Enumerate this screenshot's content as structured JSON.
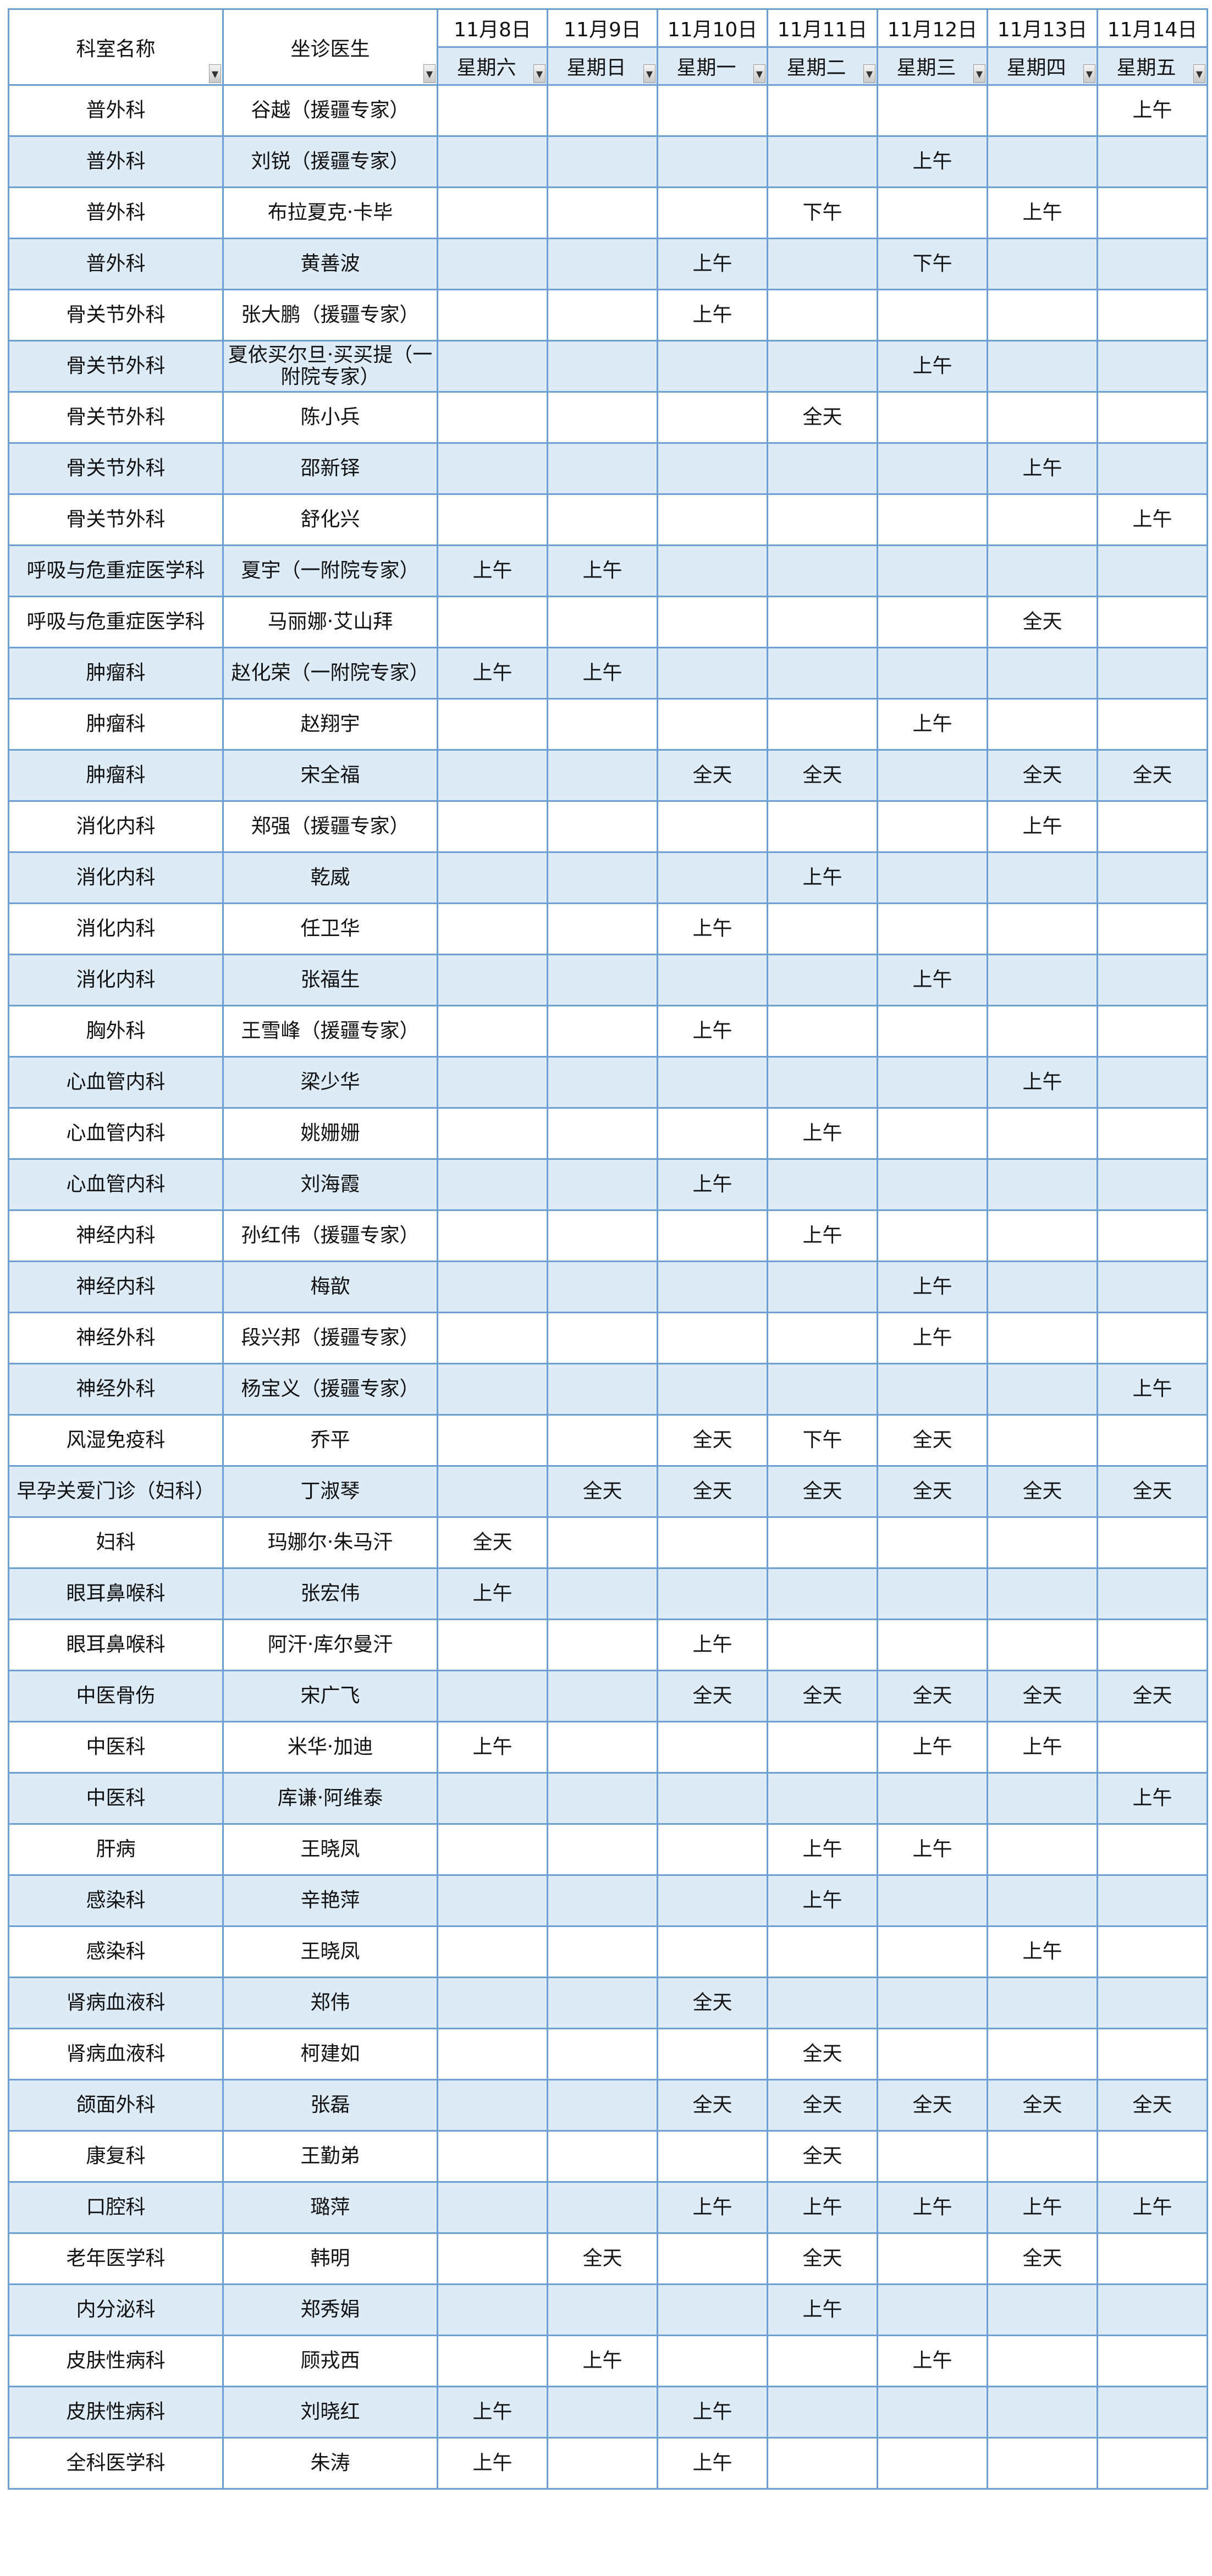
{
  "header": {
    "dept_label": "科室名称",
    "doctor_label": "坐诊医生",
    "dates": [
      "11月8日",
      "11月9日",
      "11月10日",
      "11月11日",
      "11月12日",
      "11月13日",
      "11月14日"
    ],
    "weekdays": [
      "星期六",
      "星期日",
      "星期一",
      "星期二",
      "星期三",
      "星期四",
      "星期五"
    ],
    "filter_icon": "dropdown-arrow-icon"
  },
  "colors": {
    "border": "#6d9fd6",
    "stripe": "#ddebf7"
  },
  "rows": [
    {
      "dept": "普外科",
      "doctor": "谷越（援疆专家）",
      "days": [
        "",
        "",
        "",
        "",
        "",
        "",
        "上午"
      ]
    },
    {
      "dept": "普外科",
      "doctor": "刘锐（援疆专家）",
      "days": [
        "",
        "",
        "",
        "",
        "上午",
        "",
        ""
      ]
    },
    {
      "dept": "普外科",
      "doctor": "布拉夏克·卡毕",
      "days": [
        "",
        "",
        "",
        "下午",
        "",
        "上午",
        ""
      ]
    },
    {
      "dept": "普外科",
      "doctor": "黄善波",
      "days": [
        "",
        "",
        "上午",
        "",
        "下午",
        "",
        ""
      ]
    },
    {
      "dept": "骨关节外科",
      "doctor": "张大鹏（援疆专家）",
      "days": [
        "",
        "",
        "上午",
        "",
        "",
        "",
        ""
      ]
    },
    {
      "dept": "骨关节外科",
      "doctor": "夏依买尔旦·买买提（一附院专家）",
      "days": [
        "",
        "",
        "",
        "",
        "上午",
        "",
        ""
      ]
    },
    {
      "dept": "骨关节外科",
      "doctor": "陈小兵",
      "days": [
        "",
        "",
        "",
        "全天",
        "",
        "",
        ""
      ]
    },
    {
      "dept": "骨关节外科",
      "doctor": "邵新铎",
      "days": [
        "",
        "",
        "",
        "",
        "",
        "上午",
        ""
      ]
    },
    {
      "dept": "骨关节外科",
      "doctor": "舒化兴",
      "days": [
        "",
        "",
        "",
        "",
        "",
        "",
        "上午"
      ]
    },
    {
      "dept": "呼吸与危重症医学科",
      "doctor": "夏宇（一附院专家）",
      "days": [
        "上午",
        "上午",
        "",
        "",
        "",
        "",
        ""
      ]
    },
    {
      "dept": "呼吸与危重症医学科",
      "doctor": "马丽娜·艾山拜",
      "days": [
        "",
        "",
        "",
        "",
        "",
        "全天",
        ""
      ]
    },
    {
      "dept": "肿瘤科",
      "doctor": "赵化荣（一附院专家）",
      "days": [
        "上午",
        "上午",
        "",
        "",
        "",
        "",
        ""
      ]
    },
    {
      "dept": "肿瘤科",
      "doctor": "赵翔宇",
      "days": [
        "",
        "",
        "",
        "",
        "上午",
        "",
        ""
      ]
    },
    {
      "dept": "肿瘤科",
      "doctor": "宋全福",
      "days": [
        "",
        "",
        "全天",
        "全天",
        "",
        "全天",
        "全天"
      ]
    },
    {
      "dept": "消化内科",
      "doctor": "郑强（援疆专家）",
      "days": [
        "",
        "",
        "",
        "",
        "",
        "上午",
        ""
      ]
    },
    {
      "dept": "消化内科",
      "doctor": "乾威",
      "days": [
        "",
        "",
        "",
        "上午",
        "",
        "",
        ""
      ]
    },
    {
      "dept": "消化内科",
      "doctor": "任卫华",
      "days": [
        "",
        "",
        "上午",
        "",
        "",
        "",
        ""
      ]
    },
    {
      "dept": "消化内科",
      "doctor": "张福生",
      "days": [
        "",
        "",
        "",
        "",
        "上午",
        "",
        ""
      ]
    },
    {
      "dept": "胸外科",
      "doctor": "王雪峰（援疆专家）",
      "days": [
        "",
        "",
        "上午",
        "",
        "",
        "",
        ""
      ]
    },
    {
      "dept": "心血管内科",
      "doctor": "梁少华",
      "days": [
        "",
        "",
        "",
        "",
        "",
        "上午",
        ""
      ]
    },
    {
      "dept": "心血管内科",
      "doctor": "姚姗姗",
      "days": [
        "",
        "",
        "",
        "上午",
        "",
        "",
        ""
      ]
    },
    {
      "dept": "心血管内科",
      "doctor": "刘海霞",
      "days": [
        "",
        "",
        "上午",
        "",
        "",
        "",
        ""
      ]
    },
    {
      "dept": "神经内科",
      "doctor": "孙红伟（援疆专家）",
      "days": [
        "",
        "",
        "",
        "上午",
        "",
        "",
        ""
      ]
    },
    {
      "dept": "神经内科",
      "doctor": "梅歆",
      "days": [
        "",
        "",
        "",
        "",
        "上午",
        "",
        ""
      ]
    },
    {
      "dept": "神经外科",
      "doctor": "段兴邦（援疆专家）",
      "days": [
        "",
        "",
        "",
        "",
        "上午",
        "",
        ""
      ]
    },
    {
      "dept": "神经外科",
      "doctor": "杨宝义（援疆专家）",
      "days": [
        "",
        "",
        "",
        "",
        "",
        "",
        "上午"
      ]
    },
    {
      "dept": "风湿免疫科",
      "doctor": "乔平",
      "days": [
        "",
        "",
        "全天",
        "下午",
        "全天",
        "",
        ""
      ]
    },
    {
      "dept": "早孕关爱门诊（妇科）",
      "doctor": "丁淑琴",
      "days": [
        "",
        "全天",
        "全天",
        "全天",
        "全天",
        "全天",
        "全天"
      ]
    },
    {
      "dept": "妇科",
      "doctor": "玛娜尔·朱马汗",
      "days": [
        "全天",
        "",
        "",
        "",
        "",
        "",
        ""
      ]
    },
    {
      "dept": "眼耳鼻喉科",
      "doctor": "张宏伟",
      "days": [
        "上午",
        "",
        "",
        "",
        "",
        "",
        ""
      ]
    },
    {
      "dept": "眼耳鼻喉科",
      "doctor": "阿汗·库尔曼汗",
      "days": [
        "",
        "",
        "上午",
        "",
        "",
        "",
        ""
      ]
    },
    {
      "dept": "中医骨伤",
      "doctor": "宋广飞",
      "days": [
        "",
        "",
        "全天",
        "全天",
        "全天",
        "全天",
        "全天"
      ]
    },
    {
      "dept": "中医科",
      "doctor": "米华·加迪",
      "days": [
        "上午",
        "",
        "",
        "",
        "上午",
        "上午",
        ""
      ]
    },
    {
      "dept": "中医科",
      "doctor": "库谦·阿维泰",
      "days": [
        "",
        "",
        "",
        "",
        "",
        "",
        "上午"
      ]
    },
    {
      "dept": "肝病",
      "doctor": "王晓凤",
      "days": [
        "",
        "",
        "",
        "上午",
        "上午",
        "",
        ""
      ]
    },
    {
      "dept": "感染科",
      "doctor": "辛艳萍",
      "days": [
        "",
        "",
        "",
        "上午",
        "",
        "",
        ""
      ]
    },
    {
      "dept": "感染科",
      "doctor": "王晓凤",
      "days": [
        "",
        "",
        "",
        "",
        "",
        "上午",
        ""
      ]
    },
    {
      "dept": "肾病血液科",
      "doctor": "郑伟",
      "days": [
        "",
        "",
        "全天",
        "",
        "",
        "",
        ""
      ]
    },
    {
      "dept": "肾病血液科",
      "doctor": "柯建如",
      "days": [
        "",
        "",
        "",
        "全天",
        "",
        "",
        ""
      ]
    },
    {
      "dept": "颌面外科",
      "doctor": "张磊",
      "days": [
        "",
        "",
        "全天",
        "全天",
        "全天",
        "全天",
        "全天"
      ]
    },
    {
      "dept": "康复科",
      "doctor": "王勤弟",
      "days": [
        "",
        "",
        "",
        "全天",
        "",
        "",
        ""
      ]
    },
    {
      "dept": "口腔科",
      "doctor": "璐萍",
      "days": [
        "",
        "",
        "上午",
        "上午",
        "上午",
        "上午",
        "上午"
      ]
    },
    {
      "dept": "老年医学科",
      "doctor": "韩明",
      "days": [
        "",
        "全天",
        "",
        "全天",
        "",
        "全天",
        ""
      ]
    },
    {
      "dept": "内分泌科",
      "doctor": "郑秀娟",
      "days": [
        "",
        "",
        "",
        "上午",
        "",
        "",
        ""
      ]
    },
    {
      "dept": "皮肤性病科",
      "doctor": "顾戎西",
      "days": [
        "",
        "上午",
        "",
        "",
        "上午",
        "",
        ""
      ]
    },
    {
      "dept": "皮肤性病科",
      "doctor": "刘晓红",
      "days": [
        "上午",
        "",
        "上午",
        "",
        "",
        "",
        ""
      ]
    },
    {
      "dept": "全科医学科",
      "doctor": "朱涛",
      "days": [
        "上午",
        "",
        "上午",
        "",
        "",
        "",
        ""
      ]
    }
  ]
}
